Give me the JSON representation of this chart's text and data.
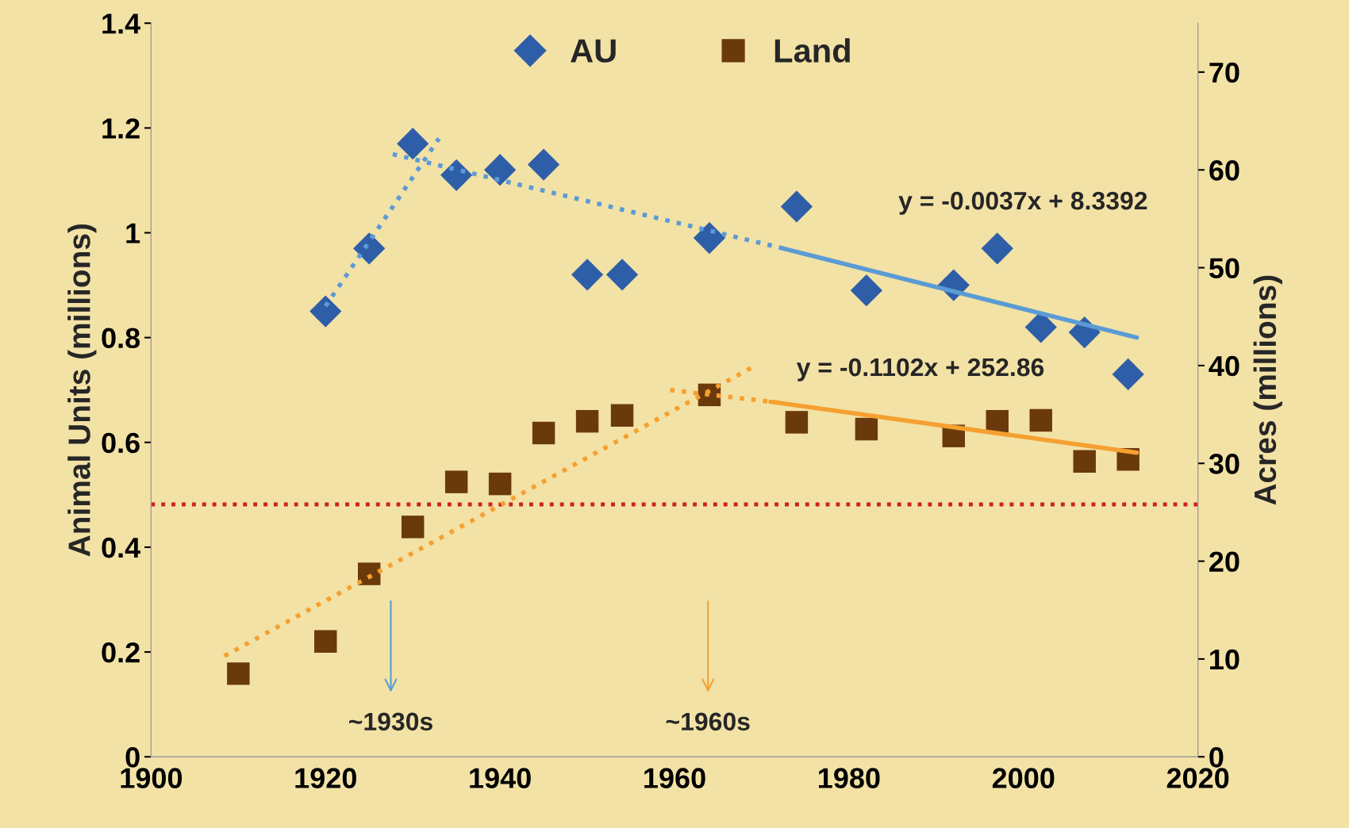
{
  "chart_data": {
    "type": "scatter",
    "ylabel": "Animal Units (millions)",
    "y2label": "Acres (millions)",
    "xlim": [
      1900,
      2020
    ],
    "xticks": [
      1900,
      1920,
      1940,
      1960,
      1980,
      2000,
      2020
    ],
    "ylim": [
      0,
      1.4
    ],
    "yticks": [
      0,
      0.2,
      0.4,
      0.6,
      0.8,
      1,
      1.2,
      1.4
    ],
    "y2lim": [
      0,
      75
    ],
    "y2ticks": [
      0,
      10,
      20,
      30,
      40,
      50,
      60,
      70
    ],
    "grid": false,
    "legend": "top",
    "series": [
      {
        "name": "AU",
        "marker": "diamond",
        "color": "#2e5ea8",
        "x": [
          1920,
          1925,
          1930,
          1935,
          1940,
          1945,
          1950,
          1954,
          1964,
          1974,
          1982,
          1992,
          1997,
          2002,
          2007,
          2012
        ],
        "values": [
          0.85,
          0.97,
          1.17,
          1.11,
          1.12,
          1.13,
          0.92,
          0.92,
          0.99,
          1.05,
          0.89,
          0.9,
          0.97,
          0.82,
          0.81,
          0.73
        ]
      },
      {
        "name": "Land",
        "marker": "square",
        "axis": "y2",
        "color": "#6b3a0c",
        "x": [
          1910,
          1920,
          1925,
          1930,
          1935,
          1940,
          1945,
          1950,
          1954,
          1964,
          1974,
          1982,
          1992,
          1997,
          2002,
          2007,
          2012
        ],
        "values": [
          8.5,
          11.8,
          18.7,
          23.5,
          28.1,
          27.9,
          33.1,
          34.3,
          34.9,
          37.0,
          34.2,
          33.5,
          32.8,
          34.3,
          34.4,
          30.2,
          30.4
        ]
      },
      {
        "type": "line",
        "line_style": "dotted",
        "color": "#5b9bd5",
        "x": [
          1920,
          1933
        ],
        "values": [
          0.86,
          1.18
        ]
      },
      {
        "type": "line",
        "line_style": "dotted",
        "color": "#5b9bd5",
        "x": [
          1927.7,
          1972.5
        ],
        "values": [
          1.15,
          0.97
        ]
      },
      {
        "type": "line",
        "line_style": "solid",
        "color": "#5b9bd5",
        "x": [
          1972.5,
          2013
        ],
        "values": [
          0.97,
          0.8
        ]
      },
      {
        "type": "line",
        "line_style": "dotted",
        "axis": "y2",
        "color": "#f5a030",
        "x": [
          1908.4,
          1969.3
        ],
        "values": [
          10.3,
          40.0
        ]
      },
      {
        "type": "line",
        "line_style": "dotted",
        "axis": "y2",
        "color": "#f5a030",
        "x": [
          1959.5,
          1971
        ],
        "values": [
          37.5,
          36.3
        ]
      },
      {
        "type": "line",
        "line_style": "solid",
        "axis": "y2",
        "color": "#f5a030",
        "x": [
          1971,
          2013
        ],
        "values": [
          36.3,
          31.1
        ]
      }
    ],
    "ref_lines": [
      {
        "axis": "y2",
        "value": 25.8,
        "color": "#d02020",
        "line_style": "dotted"
      }
    ],
    "annotations": [
      "y = -0.0037x + 8.3392",
      "y = -0.1102x + 252.86",
      "~1930s",
      "~1960s"
    ]
  }
}
